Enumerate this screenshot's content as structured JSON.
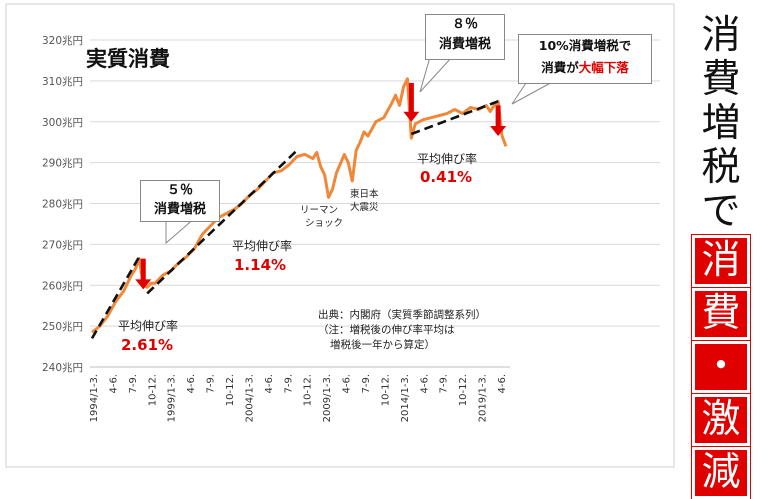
{
  "chart_data": {
    "type": "line",
    "title": "実質消費",
    "xlabel": "",
    "ylabel": "",
    "ylim": [
      240,
      320
    ],
    "y_ticks": [
      "240兆円",
      "250兆円",
      "260兆円",
      "270兆円",
      "280兆円",
      "290兆円",
      "300兆円",
      "310兆円",
      "320兆円"
    ],
    "y_tick_values": [
      240,
      250,
      260,
      270,
      280,
      290,
      300,
      310,
      320
    ],
    "x_tick_labels": [
      "1994/1-3.",
      "4-6.",
      "7-9.",
      "10-12.",
      "1999/1-3.",
      "4-6.",
      "7-9.",
      "10-12.",
      "2004/1-3.",
      "4-6.",
      "7-9.",
      "10-12.",
      "2009/1-3.",
      "4-6.",
      "7-9.",
      "10-12.",
      "2014/1-3.",
      "4-6.",
      "7-9.",
      "10-12.",
      "2019/1-3.",
      "4-6."
    ],
    "series": [
      {
        "name": "",
        "color": "#f0883a",
        "x": [
          1994.0,
          1994.5,
          1995.0,
          1995.5,
          1996.0,
          1996.25,
          1996.5,
          1996.75,
          1997.0,
          1997.25,
          1997.5,
          1997.75,
          1998.0,
          1998.5,
          1999.0,
          1999.5,
          2000.0,
          2000.5,
          2001.0,
          2001.5,
          2002.0,
          2002.5,
          2003.0,
          2003.5,
          2004.0,
          2004.5,
          2005.0,
          2005.5,
          2006.0,
          2006.5,
          2007.0,
          2007.5,
          2008.0,
          2008.25,
          2008.5,
          2008.75,
          2009.0,
          2009.25,
          2009.5,
          2010.0,
          2010.25,
          2010.5,
          2010.75,
          2011.0,
          2011.25,
          2011.5,
          2012.0,
          2012.5,
          2013.0,
          2013.25,
          2013.5,
          2013.75,
          2014.0,
          2014.25,
          2014.5,
          2015.0,
          2015.5,
          2016.0,
          2016.5,
          2017.0,
          2017.5,
          2018.0,
          2018.5,
          2019.0,
          2019.25,
          2019.5,
          2019.75,
          2020.0,
          2020.25
        ],
        "values": [
          248.5,
          250.0,
          252.5,
          256.0,
          258.5,
          260.5,
          262.5,
          264.0,
          266.5,
          260.0,
          259.5,
          260.5,
          260.5,
          262.5,
          263.5,
          265.5,
          267.0,
          269.0,
          272.5,
          274.5,
          276.5,
          277.5,
          278.5,
          280.0,
          282.0,
          283.5,
          285.5,
          287.5,
          288.0,
          289.5,
          291.5,
          292.0,
          291.0,
          292.5,
          289.0,
          287.0,
          281.5,
          283.5,
          287.5,
          292.0,
          290.0,
          285.5,
          293.0,
          295.0,
          297.5,
          296.5,
          300.0,
          301.0,
          304.5,
          306.5,
          304.0,
          308.5,
          310.5,
          296.0,
          299.5,
          300.5,
          301.0,
          301.5,
          302.0,
          303.0,
          302.0,
          303.5,
          303.0,
          304.0,
          302.5,
          304.0,
          305.0,
          296.5,
          294.0
        ]
      }
    ],
    "trend_lines": [
      {
        "x": [
          1994.0,
          1997.0
        ],
        "values": [
          247.0,
          267.0
        ]
      },
      {
        "x": [
          1997.5,
          2007.0
        ],
        "values": [
          258.0,
          293.0
        ]
      },
      {
        "x": [
          2014.25,
          2019.75
        ],
        "values": [
          297.0,
          305.0
        ]
      }
    ],
    "tax_arrows": [
      {
        "x": 1997.25,
        "y_from": 266.5,
        "y_to": 259.0
      },
      {
        "x": 2014.25,
        "y_from": 309.5,
        "y_to": 300.0
      },
      {
        "x": 2019.75,
        "y_from": 304.0,
        "y_to": 296.5
      }
    ],
    "annotations": {
      "tax5_line1": "５％",
      "tax5_line2": "消費増税",
      "tax8_line1": "８％",
      "tax8_line2": "消費増税",
      "tax10_line1": "10%消費増税で",
      "tax10_line2a": "消費が",
      "tax10_line2b": "大幅下落",
      "avg1_label": "平均伸び率",
      "avg1_value": "2.61%",
      "avg2_label": "平均伸び率",
      "avg2_value": "1.14%",
      "avg3_label": "平均伸び率",
      "avg3_value": "0.41%",
      "lehman_line1": "リーマン",
      "lehman_line2": "ショック",
      "quake_line1": "東日本",
      "quake_line2": "大震災",
      "source_line1": "出典：内閣府（実質季節調整系列）",
      "source_line2": "（注：増税後の伸び率平均は",
      "source_line3": "増税後一年から算定）"
    },
    "grid": true,
    "legend": "none"
  },
  "side_title": {
    "chars": [
      "消",
      "費",
      "増",
      "税",
      "で"
    ],
    "red_chars": [
      "消",
      "費",
      "・",
      "激",
      "減"
    ]
  },
  "colors": {
    "line": "#f0883a",
    "trend": "#111111",
    "accent_red": "#e00000",
    "grid": "#d9d9d9"
  }
}
